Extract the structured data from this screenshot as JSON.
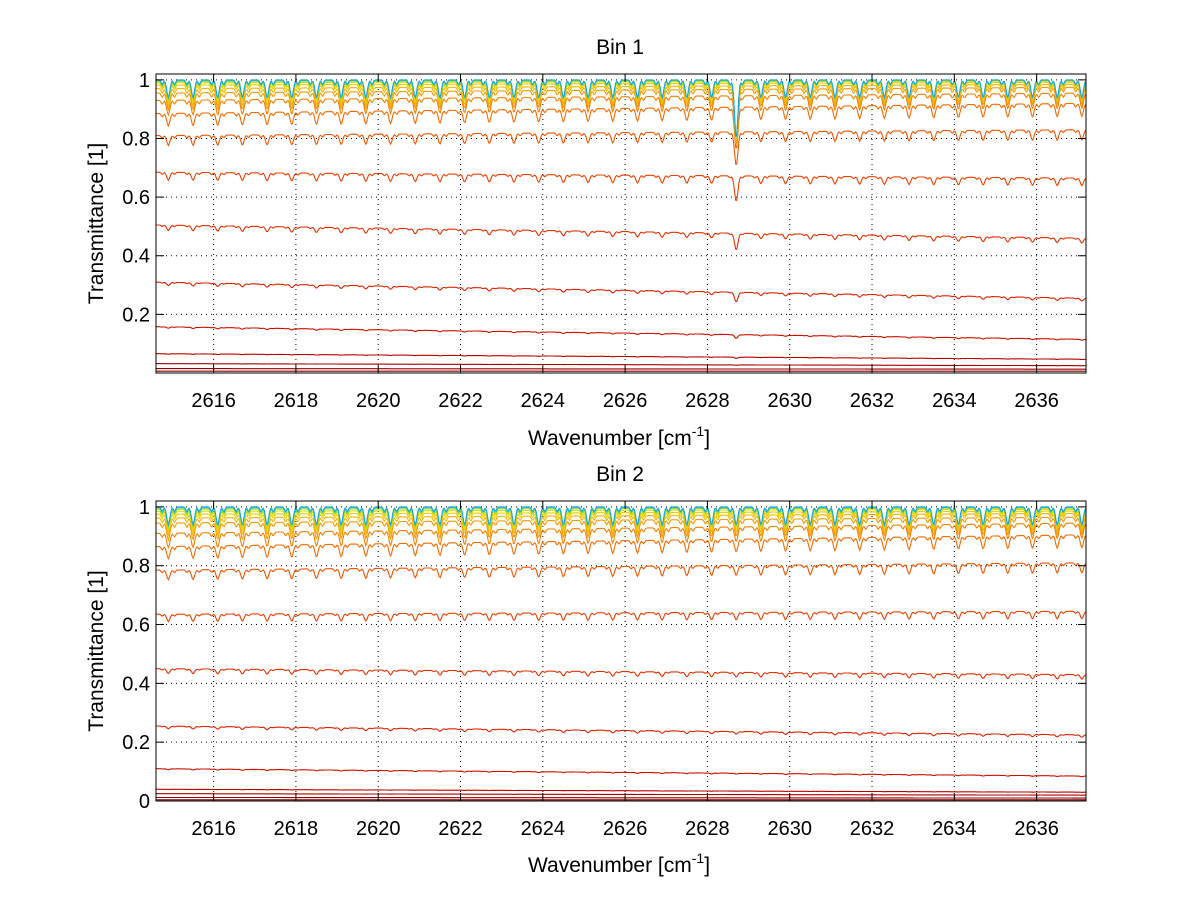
{
  "chart_data": [
    {
      "type": "line",
      "title": "Bin 1",
      "xlabel": "Wavenumber",
      "xlabel_unit": "cm",
      "xlabel_unit_exp": "-1",
      "ylabel": "Transmittance [1]",
      "xlim": [
        2614.6,
        2637.2
      ],
      "ylim": [
        0,
        1.02
      ],
      "grid": true,
      "xticks": [
        2616,
        2618,
        2620,
        2622,
        2624,
        2626,
        2628,
        2630,
        2632,
        2634,
        2636
      ],
      "xtick_labels": [
        "2616",
        "2618",
        "2620",
        "2622",
        "2624",
        "2626",
        "2628",
        "2630",
        "2632",
        "2634",
        "2636"
      ],
      "yticks": [
        0.2,
        0.4,
        0.6,
        0.8,
        1
      ],
      "ytick_labels": [
        "0.2",
        "0.4",
        "0.6",
        "0.8",
        "1"
      ],
      "line_spacing_cm": 0.6,
      "special_dip": {
        "x": 2628.7,
        "width": 0.06
      },
      "series": [
        {
          "start": 0.006,
          "end": 0.006,
          "dip_frac": 0.0,
          "color": "#7f0000"
        },
        {
          "start": 0.015,
          "end": 0.013,
          "dip_frac": 0.0,
          "color": "#960000"
        },
        {
          "start": 0.032,
          "end": 0.025,
          "dip_frac": 0.02,
          "color": "#a80000"
        },
        {
          "start": 0.066,
          "end": 0.047,
          "dip_frac": 0.04,
          "color": "#bb0000"
        },
        {
          "start": 0.158,
          "end": 0.115,
          "dip_frac": 0.05,
          "color": "#cc1100"
        },
        {
          "start": 0.31,
          "end": 0.255,
          "dip_frac": 0.06,
          "color": "#dd2200"
        },
        {
          "start": 0.505,
          "end": 0.46,
          "dip_frac": 0.06,
          "color": "#e33000"
        },
        {
          "start": 0.685,
          "end": 0.665,
          "dip_frac": 0.065,
          "color": "#ea4000"
        },
        {
          "start": 0.81,
          "end": 0.83,
          "dip_frac": 0.07,
          "color": "#ee5500"
        },
        {
          "start": 0.885,
          "end": 0.92,
          "dip_frac": 0.08,
          "color": "#f26a00"
        },
        {
          "start": 0.93,
          "end": 0.955,
          "dip_frac": 0.09,
          "color": "#f48000"
        },
        {
          "start": 0.955,
          "end": 0.975,
          "dip_frac": 0.1,
          "color": "#f59a00"
        },
        {
          "start": 0.97,
          "end": 0.985,
          "dip_frac": 0.1,
          "color": "#f7b400"
        },
        {
          "start": 0.982,
          "end": 0.992,
          "dip_frac": 0.1,
          "color": "#f0cc00"
        },
        {
          "start": 0.99,
          "end": 0.996,
          "dip_frac": 0.1,
          "color": "#d8dc00"
        },
        {
          "start": 0.995,
          "end": 0.998,
          "dip_frac": 0.1,
          "color": "#9ad83a"
        },
        {
          "start": 0.998,
          "end": 0.999,
          "dip_frac": 0.1,
          "color": "#3ccaa8"
        },
        {
          "start": 1.0,
          "end": 1.0,
          "dip_frac": 0.1,
          "color": "#1aa6e0"
        }
      ]
    },
    {
      "type": "line",
      "title": "Bin 2",
      "xlabel": "Wavenumber",
      "xlabel_unit": "cm",
      "xlabel_unit_exp": "-1",
      "ylabel": "Transmittance [1]",
      "xlim": [
        2614.6,
        2637.2
      ],
      "ylim": [
        0,
        1.02
      ],
      "grid": true,
      "xticks": [
        2616,
        2618,
        2620,
        2622,
        2624,
        2626,
        2628,
        2630,
        2632,
        2634,
        2636
      ],
      "xtick_labels": [
        "2616",
        "2618",
        "2620",
        "2622",
        "2624",
        "2626",
        "2628",
        "2630",
        "2632",
        "2634",
        "2636"
      ],
      "yticks": [
        0,
        0.2,
        0.4,
        0.6,
        0.8,
        1
      ],
      "ytick_labels": [
        "0",
        "0.2",
        "0.4",
        "0.6",
        "0.8",
        "1"
      ],
      "line_spacing_cm": 0.6,
      "series": [
        {
          "start": 0.004,
          "end": 0.004,
          "dip_frac": 0.0,
          "color": "#7f0000"
        },
        {
          "start": 0.012,
          "end": 0.01,
          "dip_frac": 0.0,
          "color": "#960000"
        },
        {
          "start": 0.025,
          "end": 0.02,
          "dip_frac": 0.02,
          "color": "#a80000"
        },
        {
          "start": 0.04,
          "end": 0.03,
          "dip_frac": 0.03,
          "color": "#bb0000"
        },
        {
          "start": 0.11,
          "end": 0.085,
          "dip_frac": 0.05,
          "color": "#cc1100"
        },
        {
          "start": 0.255,
          "end": 0.225,
          "dip_frac": 0.06,
          "color": "#dd2200"
        },
        {
          "start": 0.45,
          "end": 0.43,
          "dip_frac": 0.06,
          "color": "#e33000"
        },
        {
          "start": 0.635,
          "end": 0.645,
          "dip_frac": 0.065,
          "color": "#ea4000"
        },
        {
          "start": 0.785,
          "end": 0.81,
          "dip_frac": 0.07,
          "color": "#ee5500"
        },
        {
          "start": 0.865,
          "end": 0.905,
          "dip_frac": 0.08,
          "color": "#f26a00"
        },
        {
          "start": 0.91,
          "end": 0.945,
          "dip_frac": 0.09,
          "color": "#f48000"
        },
        {
          "start": 0.945,
          "end": 0.965,
          "dip_frac": 0.1,
          "color": "#f59a00"
        },
        {
          "start": 0.962,
          "end": 0.978,
          "dip_frac": 0.1,
          "color": "#f7b400"
        },
        {
          "start": 0.975,
          "end": 0.986,
          "dip_frac": 0.1,
          "color": "#f0cc00"
        },
        {
          "start": 0.985,
          "end": 0.992,
          "dip_frac": 0.1,
          "color": "#d8dc00"
        },
        {
          "start": 0.992,
          "end": 0.996,
          "dip_frac": 0.1,
          "color": "#9ad83a"
        },
        {
          "start": 0.997,
          "end": 0.998,
          "dip_frac": 0.1,
          "color": "#3ccaa8"
        },
        {
          "start": 1.0,
          "end": 1.0,
          "dip_frac": 0.1,
          "color": "#1aa6e0"
        }
      ]
    }
  ]
}
